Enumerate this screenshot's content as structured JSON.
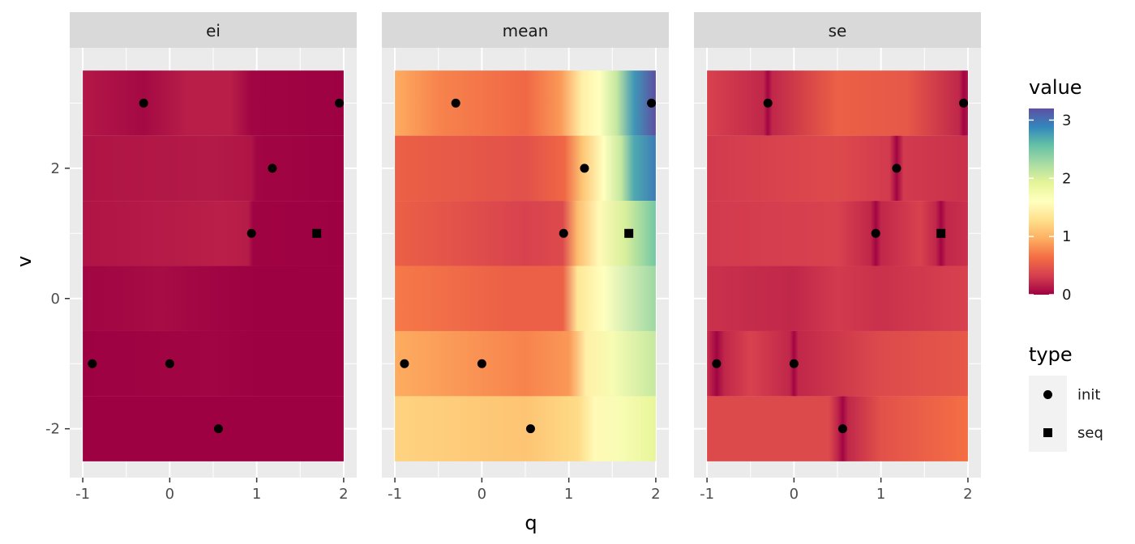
{
  "chart_data": {
    "type": "heatmap",
    "xlabel": "q",
    "ylabel": "v",
    "xlim": [
      -1.15,
      2.15
    ],
    "ylim": [
      -2.75,
      3.85
    ],
    "x_ticks": [
      -1,
      0,
      1,
      2
    ],
    "x_tick_labels": [
      "-1",
      "0",
      "1",
      "2"
    ],
    "y_ticks": [
      -2,
      0,
      2
    ],
    "y_tick_labels": [
      "-2",
      "0",
      "2"
    ],
    "v_levels": [
      3,
      2,
      1,
      0,
      -1,
      -2
    ],
    "q_range": [
      -1,
      2
    ],
    "fill_legend": {
      "title": "value",
      "min": 0,
      "max": 3.2,
      "ticks": [
        0,
        1,
        2,
        3
      ],
      "tick_labels": [
        "0",
        "1",
        "2",
        "3"
      ],
      "palette": [
        "#9E0142",
        "#D53E4F",
        "#F46D43",
        "#FDAE61",
        "#FEE08B",
        "#FFFFBF",
        "#E6F598",
        "#ABDDA4",
        "#66C2A5",
        "#3288BD",
        "#5E4FA2"
      ]
    },
    "shape_legend": {
      "title": "type",
      "items": [
        {
          "label": "init",
          "shape": "circle"
        },
        {
          "label": "seq",
          "shape": "square"
        }
      ]
    },
    "points": [
      {
        "q": -0.3,
        "v": 3,
        "type": "init"
      },
      {
        "q": 1.95,
        "v": 3,
        "type": "init"
      },
      {
        "q": 1.18,
        "v": 2,
        "type": "init"
      },
      {
        "q": 0.94,
        "v": 1,
        "type": "init"
      },
      {
        "q": 1.69,
        "v": 1,
        "type": "seq"
      },
      {
        "q": -0.89,
        "v": -1,
        "type": "init"
      },
      {
        "q": 0.0,
        "v": -1,
        "type": "init"
      },
      {
        "q": 0.56,
        "v": -2,
        "type": "init"
      }
    ],
    "panels": [
      {
        "label": "ei",
        "rows": [
          {
            "v": 3,
            "stops": [
              [
                -1,
                0.12
              ],
              [
                -0.3,
                0.04
              ],
              [
                0.2,
                0.15
              ],
              [
                0.7,
                0.15
              ],
              [
                0.94,
                0.02
              ],
              [
                2,
                0.0
              ]
            ]
          },
          {
            "v": 2,
            "stops": [
              [
                -1,
                0.1
              ],
              [
                0.5,
                0.13
              ],
              [
                0.94,
                0.1
              ],
              [
                1.0,
                0.02
              ],
              [
                2,
                0.0
              ]
            ]
          },
          {
            "v": 1,
            "stops": [
              [
                -1,
                0.1
              ],
              [
                0.6,
                0.16
              ],
              [
                0.9,
                0.14
              ],
              [
                0.96,
                0.01
              ],
              [
                2,
                0.0
              ]
            ]
          },
          {
            "v": 0,
            "stops": [
              [
                -1,
                0.02
              ],
              [
                -0.1,
                0.06
              ],
              [
                0.5,
                0.02
              ],
              [
                1.0,
                0.0
              ],
              [
                2,
                0.0
              ]
            ]
          },
          {
            "v": -1,
            "stops": [
              [
                -1,
                0.0
              ],
              [
                0.5,
                0.02
              ],
              [
                1.0,
                0.0
              ],
              [
                2,
                0.0
              ]
            ]
          },
          {
            "v": -2,
            "stops": [
              [
                -1,
                0.0
              ],
              [
                2,
                0.0
              ]
            ]
          }
        ]
      },
      {
        "label": "mean",
        "rows": [
          {
            "v": 3,
            "stops": [
              [
                -1,
                0.95
              ],
              [
                -0.5,
                0.75
              ],
              [
                0.5,
                0.6
              ],
              [
                0.9,
                0.85
              ],
              [
                1.15,
                1.45
              ],
              [
                1.35,
                1.6
              ],
              [
                1.55,
                2.1
              ],
              [
                1.75,
                2.8
              ],
              [
                2,
                3.2
              ]
            ]
          },
          {
            "v": 2,
            "stops": [
              [
                -1,
                0.55
              ],
              [
                0.5,
                0.45
              ],
              [
                0.95,
                0.6
              ],
              [
                1.15,
                1.1
              ],
              [
                1.4,
                1.6
              ],
              [
                1.6,
                2.1
              ],
              [
                1.75,
                2.7
              ],
              [
                2,
                2.95
              ]
            ]
          },
          {
            "v": 1,
            "stops": [
              [
                -1,
                0.55
              ],
              [
                0.5,
                0.35
              ],
              [
                0.93,
                0.4
              ],
              [
                1.1,
                1.05
              ],
              [
                1.35,
                1.55
              ],
              [
                1.65,
                2.0
              ],
              [
                2,
                2.5
              ]
            ]
          },
          {
            "v": 0,
            "stops": [
              [
                -1,
                0.7
              ],
              [
                0.3,
                0.55
              ],
              [
                0.93,
                0.55
              ],
              [
                1.1,
                1.35
              ],
              [
                1.4,
                1.6
              ],
              [
                2,
                2.3
              ]
            ]
          },
          {
            "v": -1,
            "stops": [
              [
                -1,
                0.95
              ],
              [
                0.5,
                0.75
              ],
              [
                1.0,
                0.85
              ],
              [
                1.2,
                1.45
              ],
              [
                1.5,
                1.7
              ],
              [
                2,
                2.1
              ]
            ]
          },
          {
            "v": -2,
            "stops": [
              [
                -1,
                1.2
              ],
              [
                0.5,
                1.1
              ],
              [
                1.1,
                1.25
              ],
              [
                1.3,
                1.55
              ],
              [
                1.6,
                1.7
              ],
              [
                2,
                1.9
              ]
            ]
          }
        ]
      },
      {
        "label": "se",
        "rows": [
          {
            "v": 3,
            "stops": [
              [
                -1,
                0.35
              ],
              [
                -0.35,
                0.2
              ],
              [
                -0.3,
                0.02
              ],
              [
                -0.25,
                0.2
              ],
              [
                0.5,
                0.55
              ],
              [
                1.3,
                0.5
              ],
              [
                1.9,
                0.2
              ],
              [
                1.95,
                0.02
              ],
              [
                2,
                0.1
              ]
            ]
          },
          {
            "v": 2,
            "stops": [
              [
                -1,
                0.3
              ],
              [
                0.5,
                0.4
              ],
              [
                1.1,
                0.3
              ],
              [
                1.18,
                0.02
              ],
              [
                1.26,
                0.3
              ],
              [
                2,
                0.25
              ]
            ]
          },
          {
            "v": 1,
            "stops": [
              [
                -1,
                0.3
              ],
              [
                0.5,
                0.35
              ],
              [
                0.88,
                0.2
              ],
              [
                0.94,
                0.02
              ],
              [
                1.0,
                0.2
              ],
              [
                1.45,
                0.35
              ],
              [
                1.63,
                0.2
              ],
              [
                1.69,
                0.02
              ],
              [
                1.75,
                0.2
              ],
              [
                2,
                0.25
              ]
            ]
          },
          {
            "v": 0,
            "stops": [
              [
                -1,
                0.25
              ],
              [
                0.0,
                0.2
              ],
              [
                0.5,
                0.3
              ],
              [
                1.0,
                0.25
              ],
              [
                2,
                0.35
              ]
            ]
          },
          {
            "v": -1,
            "stops": [
              [
                -1,
                0.25
              ],
              [
                -0.89,
                0.02
              ],
              [
                -0.8,
                0.2
              ],
              [
                -0.5,
                0.35
              ],
              [
                -0.05,
                0.2
              ],
              [
                0.0,
                0.02
              ],
              [
                0.05,
                0.2
              ],
              [
                1.0,
                0.4
              ],
              [
                2,
                0.5
              ]
            ]
          },
          {
            "v": -2,
            "stops": [
              [
                -1,
                0.4
              ],
              [
                0.4,
                0.4
              ],
              [
                0.5,
                0.2
              ],
              [
                0.56,
                0.02
              ],
              [
                0.62,
                0.2
              ],
              [
                1.0,
                0.45
              ],
              [
                2,
                0.65
              ]
            ]
          }
        ]
      }
    ]
  }
}
